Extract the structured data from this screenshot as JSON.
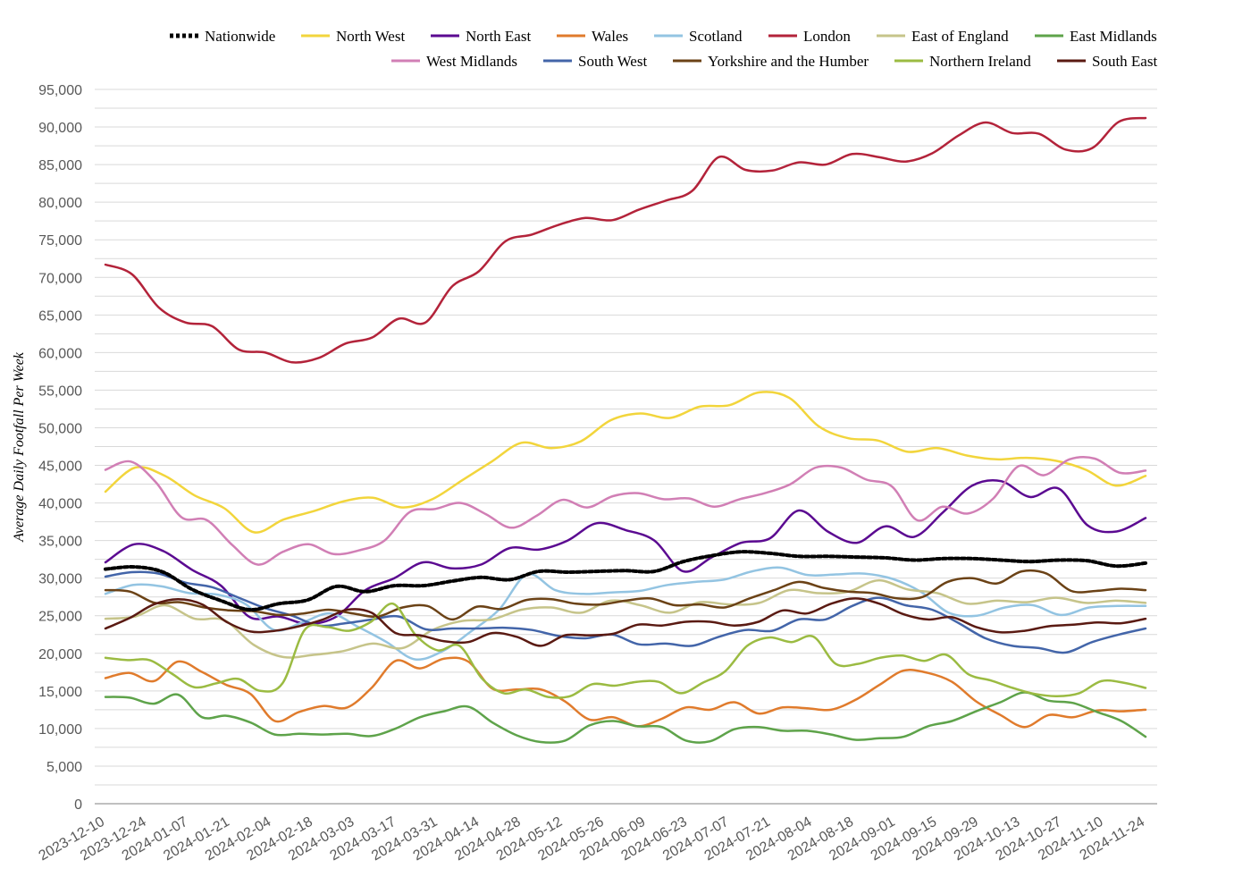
{
  "chart_data": {
    "type": "line",
    "title": "",
    "xlabel": "",
    "ylabel": "Average Daily Footfall Per Week",
    "ylim": [
      0,
      95000
    ],
    "ytick_step": 5000,
    "grid": true,
    "legend_position": "top",
    "x_tick_labels": [
      "2023-12-10",
      "2023-12-24",
      "2024-01-07",
      "2024-01-21",
      "2024-02-04",
      "2024-02-18",
      "2024-03-03",
      "2024-03-17",
      "2024-03-31",
      "2024-04-14",
      "2024-04-28",
      "2024-05-12",
      "2024-05-26",
      "2024-06-09",
      "2024-06-23",
      "2024-07-07",
      "2024-07-21",
      "2024-08-04",
      "2024-08-18",
      "2024-09-01",
      "2024-09-15",
      "2024-09-29",
      "2024-10-13",
      "2024-10-27",
      "2024-11-10",
      "2024-11-24"
    ],
    "series": [
      {
        "name": "Nationwide",
        "color": "#000000",
        "dashed": true,
        "values": [
          31200,
          31500,
          30800,
          28500,
          27000,
          25800,
          26600,
          27100,
          28900,
          28200,
          29000,
          29000,
          29600,
          30100,
          29800,
          30900,
          30800,
          30900,
          31000,
          30900,
          32200,
          33000,
          33500,
          33300,
          32900,
          32900,
          32800,
          32700,
          32400,
          32600,
          32600,
          32400,
          32200,
          32400,
          32300,
          31600,
          32000
        ]
      },
      {
        "name": "North West",
        "color": "#f2d53c",
        "values": [
          41500,
          44700,
          43600,
          41000,
          39300,
          36100,
          37800,
          38900,
          40200,
          40700,
          39400,
          40500,
          43000,
          45500,
          48000,
          47300,
          48200,
          51000,
          51900,
          51300,
          52800,
          53000,
          54700,
          54000,
          50200,
          48600,
          48300,
          46800,
          47300,
          46300,
          45800,
          46000,
          45600,
          44400,
          42300,
          43600
        ]
      },
      {
        "name": "North East",
        "color": "#5b0a91",
        "values": [
          32100,
          34500,
          33600,
          31100,
          29000,
          24800,
          24900,
          23900,
          24900,
          28400,
          30000,
          32100,
          31300,
          31800,
          34000,
          33800,
          35000,
          37300,
          36400,
          35000,
          30900,
          32800,
          34700,
          35300,
          39000,
          36200,
          34700,
          36900,
          35500,
          38800,
          42300,
          42900,
          40800,
          41900,
          37000,
          36200,
          38000
        ]
      },
      {
        "name": "Wales",
        "color": "#e07b2c",
        "values": [
          16700,
          17400,
          16300,
          18900,
          17500,
          15800,
          14600,
          11000,
          12200,
          13000,
          12800,
          15400,
          19000,
          18000,
          19300,
          18900,
          15300,
          15200,
          15200,
          13600,
          11200,
          11500,
          10300,
          11300,
          12800,
          12500,
          13500,
          12000,
          12800,
          12700,
          12500,
          13800,
          15800,
          17700,
          17400,
          16200,
          13600,
          11800,
          10200,
          11800,
          11500,
          12400,
          12300,
          12500
        ]
      },
      {
        "name": "Scotland",
        "color": "#93c4e2",
        "values": [
          27900,
          29100,
          28900,
          28000,
          27800,
          26500,
          23100,
          24100,
          25300,
          23500,
          21500,
          19200,
          20300,
          22900,
          25800,
          30500,
          28400,
          27900,
          28100,
          28300,
          29100,
          29500,
          29800,
          30900,
          31400,
          30400,
          30500,
          30600,
          29900,
          28200,
          25400,
          25000,
          26100,
          26400,
          25100,
          26100,
          26300,
          26300
        ]
      },
      {
        "name": "London",
        "color": "#b3233a",
        "values": [
          71700,
          70400,
          66000,
          64000,
          63500,
          60400,
          60000,
          58700,
          59300,
          61200,
          62000,
          64500,
          64000,
          68800,
          70800,
          74800,
          75700,
          77000,
          77900,
          77600,
          79000,
          80200,
          81500,
          86000,
          84300,
          84200,
          85300,
          85000,
          86400,
          86000,
          85400,
          86500,
          88900,
          90600,
          89200,
          89100,
          87000,
          87200,
          90700,
          91200
        ]
      },
      {
        "name": "East of England",
        "color": "#c6c48a",
        "values": [
          24600,
          24900,
          26400,
          24600,
          24400,
          21100,
          19500,
          19800,
          20300,
          21300,
          20700,
          23100,
          24300,
          24500,
          25800,
          26100,
          25400,
          27000,
          26400,
          25400,
          26800,
          26500,
          26700,
          28400,
          28000,
          28200,
          29700,
          28500,
          28000,
          26600,
          27000,
          26800,
          27400,
          26700,
          27000,
          26700
        ]
      },
      {
        "name": "East Midlands",
        "color": "#5ea34a",
        "values": [
          14200,
          14100,
          13300,
          14500,
          11500,
          11700,
          10800,
          9200,
          9300,
          9200,
          9300,
          9000,
          10000,
          11500,
          12300,
          12900,
          10800,
          9100,
          8200,
          8400,
          10400,
          11000,
          10300,
          10200,
          8400,
          8300,
          9900,
          10200,
          9700,
          9700,
          9200,
          8500,
          8700,
          8900,
          10300,
          11000,
          12300,
          13500,
          14800,
          13700,
          13400,
          12200,
          11000,
          8900
        ]
      },
      {
        "name": "West Midlands",
        "color": "#d17fb5",
        "values": [
          44400,
          45500,
          42700,
          38100,
          37700,
          34400,
          31800,
          33500,
          34500,
          33200,
          33700,
          35000,
          38800,
          39200,
          40000,
          38500,
          36700,
          38300,
          40400,
          39400,
          40900,
          41300,
          40500,
          40600,
          39500,
          40500,
          41300,
          42500,
          44700,
          44700,
          43100,
          42200,
          37700,
          39500,
          38600,
          40600,
          44900,
          43700,
          45800,
          45900,
          44000,
          44300
        ]
      },
      {
        "name": "South West",
        "color": "#4365a9",
        "values": [
          30200,
          30800,
          30600,
          29400,
          28800,
          27400,
          26000,
          25000,
          23700,
          24000,
          24500,
          24900,
          23200,
          23300,
          23300,
          23400,
          23100,
          22300,
          22000,
          22500,
          21200,
          21300,
          21000,
          22200,
          23100,
          23000,
          24500,
          24500,
          26300,
          27400,
          26400,
          25800,
          24000,
          22000,
          21000,
          20700,
          20100,
          21500,
          22500,
          23300
        ]
      },
      {
        "name": "Yorkshire and the Humber",
        "color": "#6b4216",
        "values": [
          28400,
          28200,
          26700,
          26800,
          26100,
          25700,
          25600,
          25100,
          25300,
          25800,
          25300,
          24900,
          26100,
          26300,
          24500,
          26200,
          25900,
          27100,
          27200,
          26600,
          26500,
          27000,
          27300,
          26400,
          26500,
          26100,
          27300,
          28400,
          29500,
          28700,
          28200,
          28000,
          27300,
          27500,
          29500,
          30000,
          29300,
          30900,
          30600,
          28300,
          28300,
          28600,
          28400
        ]
      },
      {
        "name": "Northern Ireland",
        "color": "#9bbb42",
        "values": [
          19400,
          19100,
          19100,
          17300,
          15500,
          16000,
          16600,
          15000,
          16000,
          23100,
          23500,
          23000,
          24200,
          26600,
          22500,
          20400,
          21000,
          16700,
          14700,
          15200,
          14200,
          14300,
          15900,
          15700,
          16200,
          16200,
          14700,
          16100,
          17600,
          21000,
          22100,
          21500,
          22200,
          18600,
          18600,
          19400,
          19700,
          19000,
          19800,
          17200,
          16400,
          15400,
          14600,
          14300,
          14700,
          16300,
          16100,
          15400
        ]
      },
      {
        "name": "South East",
        "color": "#5a1a12",
        "values": [
          23300,
          24700,
          26500,
          27200,
          26500,
          24200,
          22900,
          23000,
          23600,
          24500,
          25800,
          25400,
          22700,
          22400,
          21600,
          21500,
          22700,
          22200,
          21000,
          22400,
          22400,
          22600,
          23800,
          23700,
          24200,
          24200,
          23700,
          24200,
          25700,
          25300,
          26600,
          27300,
          26600,
          25200,
          24500,
          24800,
          23500,
          22800,
          23000,
          23600,
          23800,
          24100,
          24000,
          24600
        ]
      }
    ]
  }
}
